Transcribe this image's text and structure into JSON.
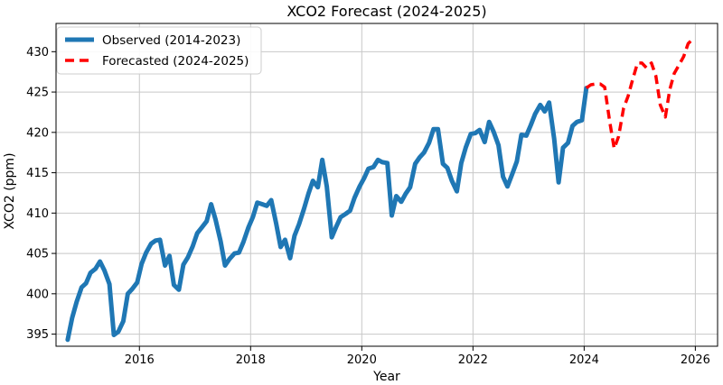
{
  "chart_data": {
    "type": "line",
    "title": "XCO2 Forecast (2024-2025)",
    "xlabel": "Year",
    "ylabel": "XCO2 (ppm)",
    "xlim": [
      2014.5,
      2026.4
    ],
    "ylim": [
      393.5,
      433.5
    ],
    "x_ticks": [
      2016,
      2018,
      2020,
      2022,
      2024,
      2026
    ],
    "x_tick_labels": [
      "2016",
      "2018",
      "2020",
      "2022",
      "2024",
      "2026"
    ],
    "y_ticks": [
      395,
      400,
      405,
      410,
      415,
      420,
      425,
      430
    ],
    "y_tick_labels": [
      "395",
      "400",
      "405",
      "410",
      "415",
      "420",
      "425",
      "430"
    ],
    "grid": true,
    "legend_position": "top-left",
    "series": [
      {
        "name": "Observed (2014-2023)",
        "color": "#1f77b4",
        "style": "solid",
        "x": [
          2014.71,
          2014.79,
          2014.87,
          2014.96,
          2015.04,
          2015.12,
          2015.21,
          2015.29,
          2015.37,
          2015.46,
          2015.54,
          2015.62,
          2015.71,
          2015.79,
          2015.87,
          2015.96,
          2016.04,
          2016.12,
          2016.21,
          2016.29,
          2016.37,
          2016.46,
          2016.54,
          2016.62,
          2016.71,
          2016.79,
          2016.87,
          2016.96,
          2017.04,
          2017.12,
          2017.21,
          2017.29,
          2017.37,
          2017.46,
          2017.54,
          2017.62,
          2017.71,
          2017.79,
          2017.87,
          2017.96,
          2018.04,
          2018.12,
          2018.21,
          2018.29,
          2018.37,
          2018.46,
          2018.54,
          2018.62,
          2018.71,
          2018.79,
          2018.87,
          2018.96,
          2019.04,
          2019.12,
          2019.21,
          2019.29,
          2019.37,
          2019.46,
          2019.54,
          2019.62,
          2019.71,
          2019.79,
          2019.87,
          2019.96,
          2020.04,
          2020.12,
          2020.21,
          2020.29,
          2020.37,
          2020.46,
          2020.54,
          2020.62,
          2020.71,
          2020.79,
          2020.87,
          2020.96,
          2021.04,
          2021.12,
          2021.21,
          2021.29,
          2021.37,
          2021.46,
          2021.54,
          2021.62,
          2021.71,
          2021.79,
          2021.87,
          2021.96,
          2022.04,
          2022.12,
          2022.21,
          2022.29,
          2022.37,
          2022.46,
          2022.54,
          2022.62,
          2022.71,
          2022.79,
          2022.87,
          2022.96,
          2023.04,
          2023.12,
          2023.21,
          2023.29,
          2023.37,
          2023.46,
          2023.54,
          2023.62,
          2023.71,
          2023.79,
          2023.87,
          2023.96,
          2024.04
        ],
        "y": [
          394.3,
          397.0,
          399.0,
          400.8,
          401.3,
          402.6,
          403.1,
          404.0,
          402.9,
          401.2,
          394.9,
          395.3,
          396.6,
          400.0,
          400.6,
          401.4,
          403.7,
          405.1,
          406.2,
          406.6,
          406.7,
          403.5,
          404.7,
          401.1,
          400.5,
          403.6,
          404.5,
          405.9,
          407.5,
          408.2,
          409.0,
          411.1,
          409.2,
          406.5,
          403.5,
          404.3,
          405.0,
          405.1,
          406.4,
          408.2,
          409.5,
          411.3,
          411.1,
          410.9,
          411.6,
          408.7,
          405.8,
          406.7,
          404.4,
          407.2,
          408.6,
          410.5,
          412.4,
          414.0,
          413.2,
          416.6,
          413.3,
          407.0,
          408.3,
          409.5,
          409.9,
          410.3,
          411.9,
          413.3,
          414.3,
          415.5,
          415.7,
          416.6,
          416.3,
          416.2,
          409.7,
          412.1,
          411.4,
          412.4,
          413.2,
          416.1,
          416.9,
          417.5,
          418.7,
          420.4,
          420.4,
          416.1,
          415.6,
          414.0,
          412.7,
          416.2,
          418.1,
          419.8,
          419.9,
          420.3,
          418.8,
          421.3,
          420.1,
          418.4,
          414.5,
          413.3,
          414.9,
          416.4,
          419.7,
          419.6,
          420.9,
          422.3,
          423.4,
          422.6,
          423.7,
          419.2,
          413.8,
          418.1,
          418.7,
          420.8,
          421.3,
          421.5,
          425.5
        ]
      },
      {
        "name": "Forecasted (2024-2025)",
        "color": "#ff0000",
        "style": "dashed",
        "x": [
          2024.04,
          2024.12,
          2024.21,
          2024.29,
          2024.37,
          2024.46,
          2024.54,
          2024.62,
          2024.71,
          2024.79,
          2024.87,
          2024.96,
          2025.04,
          2025.12,
          2025.21,
          2025.29,
          2025.37,
          2025.46,
          2025.54,
          2025.62,
          2025.71,
          2025.79,
          2025.87,
          2025.96
        ],
        "y": [
          425.5,
          425.9,
          426.0,
          426.0,
          425.6,
          421.3,
          418.0,
          419.5,
          423.0,
          424.5,
          426.5,
          428.6,
          428.6,
          428.0,
          428.6,
          427.0,
          423.4,
          421.9,
          425.3,
          427.3,
          428.4,
          429.4,
          431.0,
          431.6
        ]
      }
    ]
  }
}
